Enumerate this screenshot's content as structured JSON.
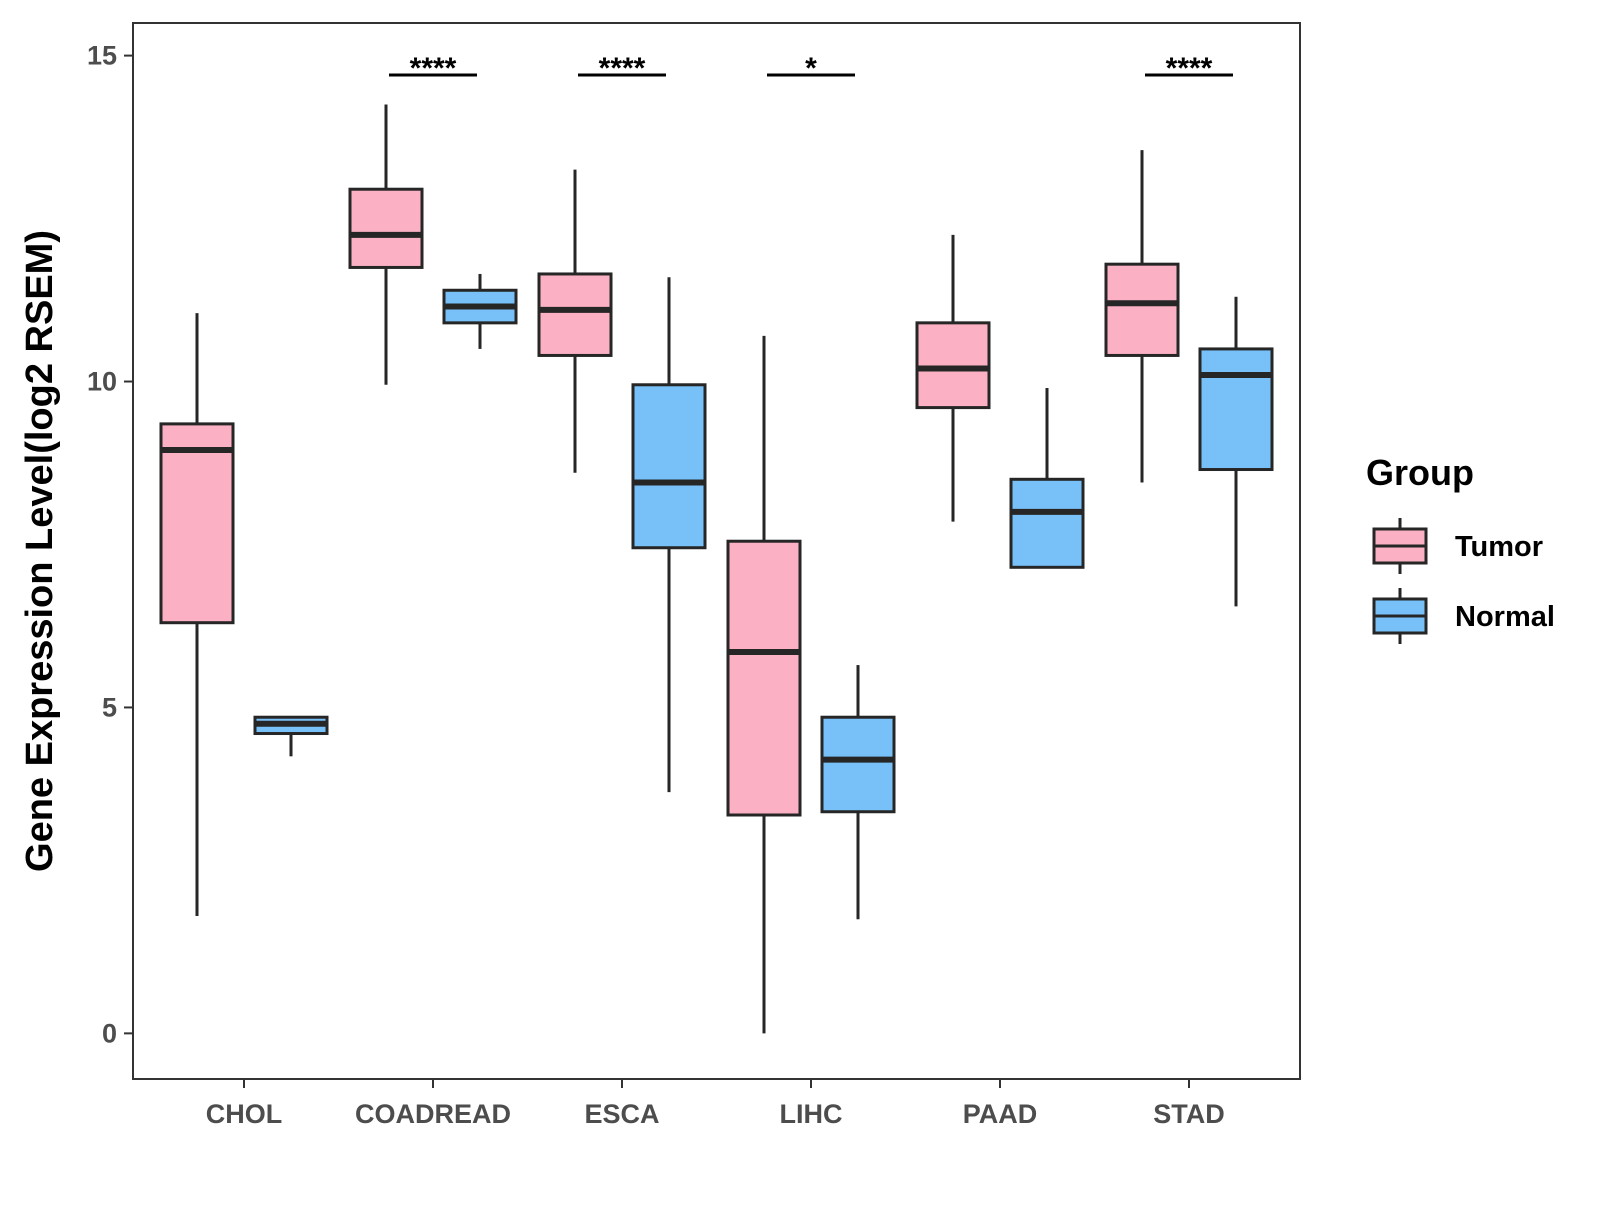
{
  "chart_data": {
    "type": "boxplot",
    "title": "",
    "xlabel": "",
    "ylabel": "Gene Expression Level(log2 RSEM)",
    "ylim": [
      -0.7,
      15.5
    ],
    "yticks": [
      0,
      5,
      10,
      15
    ],
    "categories": [
      "CHOL",
      "COADREAD",
      "ESCA",
      "LIHC",
      "PAAD",
      "STAD"
    ],
    "legend": {
      "title": "Group",
      "position": "right",
      "entries": [
        {
          "name": "Tumor",
          "color": "#FBB1C3"
        },
        {
          "name": "Normal",
          "color": "#78C1F8"
        }
      ]
    },
    "series": [
      {
        "name": "Tumor",
        "color": "#FBB1C3",
        "boxes": [
          {
            "min": 1.8,
            "q1": 6.3,
            "median": 8.95,
            "q3": 9.35,
            "max": 11.05
          },
          {
            "min": 9.95,
            "q1": 11.75,
            "median": 12.25,
            "q3": 12.95,
            "max": 14.25
          },
          {
            "min": 8.6,
            "q1": 10.4,
            "median": 11.1,
            "q3": 11.65,
            "max": 13.25
          },
          {
            "min": 0.0,
            "q1": 3.35,
            "median": 5.85,
            "q3": 7.55,
            "max": 10.7
          },
          {
            "min": 7.85,
            "q1": 9.6,
            "median": 10.2,
            "q3": 10.9,
            "max": 12.25
          },
          {
            "min": 8.45,
            "q1": 10.4,
            "median": 11.2,
            "q3": 11.8,
            "max": 13.55
          }
        ]
      },
      {
        "name": "Normal",
        "color": "#78C1F8",
        "boxes": [
          {
            "min": 4.25,
            "q1": 4.6,
            "median": 4.75,
            "q3": 4.85,
            "max": 4.85
          },
          {
            "min": 10.5,
            "q1": 10.9,
            "median": 11.15,
            "q3": 11.4,
            "max": 11.65
          },
          {
            "min": 3.7,
            "q1": 7.45,
            "median": 8.45,
            "q3": 9.95,
            "max": 11.6
          },
          {
            "min": 1.75,
            "q1": 3.4,
            "median": 4.2,
            "q3": 4.85,
            "max": 5.65
          },
          {
            "min": 7.15,
            "q1": 7.15,
            "median": 8.0,
            "q3": 8.5,
            "max": 9.9
          },
          {
            "min": 6.55,
            "q1": 8.65,
            "median": 10.1,
            "q3": 10.5,
            "max": 11.3
          }
        ]
      }
    ],
    "annotations": [
      {
        "category": "COADREAD",
        "label": "****"
      },
      {
        "category": "ESCA",
        "label": "****"
      },
      {
        "category": "LIHC",
        "label": "*"
      },
      {
        "category": "STAD",
        "label": "****"
      }
    ]
  }
}
